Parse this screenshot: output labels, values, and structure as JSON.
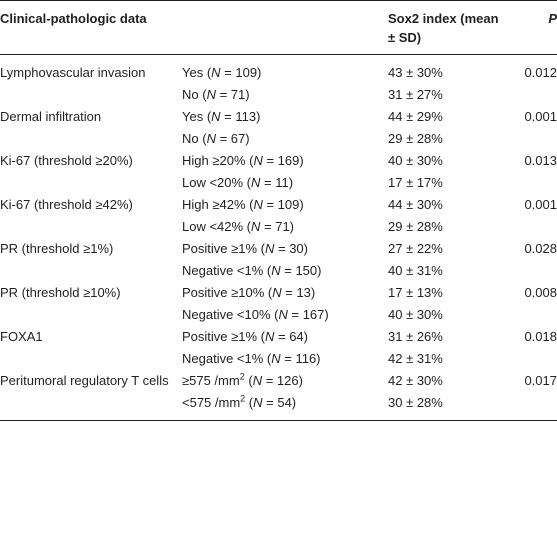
{
  "header": {
    "col1": "Clinical-pathologic data",
    "col2": "",
    "col3": "Sox2 index (mean ± SD)",
    "col4": "P"
  },
  "rows": [
    {
      "factor": "Lymphovascular invasion",
      "group_pre": "Yes (",
      "n": "N",
      "group_post": " = 109)",
      "sox2": "43 ± 30%",
      "p": "0.012"
    },
    {
      "factor": "",
      "group_pre": "No (",
      "n": "N",
      "group_post": " = 71)",
      "sox2": "31 ± 27%",
      "p": ""
    },
    {
      "factor": "Dermal infiltration",
      "group_pre": "Yes (",
      "n": "N",
      "group_post": " = 113)",
      "sox2": "44 ± 29%",
      "p": "0.001"
    },
    {
      "factor": "",
      "group_pre": "No (",
      "n": "N",
      "group_post": " = 67)",
      "sox2": "29 ± 28%",
      "p": ""
    },
    {
      "factor": "Ki-67 (threshold ≥20%)",
      "group_pre": "High ≥20% (",
      "n": "N",
      "group_post": " = 169)",
      "sox2": "40 ± 30%",
      "p": "0.013"
    },
    {
      "factor": "",
      "group_pre": "Low <20% (",
      "n": "N",
      "group_post": " = 11)",
      "sox2": "17 ± 17%",
      "p": ""
    },
    {
      "factor": "Ki-67 (threshold ≥42%)",
      "group_pre": "High ≥42% (",
      "n": "N",
      "group_post": " = 109)",
      "sox2": "44 ± 30%",
      "p": "0.001"
    },
    {
      "factor": "",
      "group_pre": "Low <42% (",
      "n": "N",
      "group_post": " = 71)",
      "sox2": "29 ± 28%",
      "p": ""
    },
    {
      "factor": "PR (threshold ≥1%)",
      "group_pre": "Positive ≥1% (",
      "n": "N",
      "group_post": " = 30)",
      "sox2": "27 ± 22%",
      "p": "0.028"
    },
    {
      "factor": "",
      "group_pre": "Negative <1% (",
      "n": "N",
      "group_post": " = 150)",
      "sox2": "40 ± 31%",
      "p": ""
    },
    {
      "factor": "PR (threshold ≥10%)",
      "group_pre": "Positive ≥10% (",
      "n": "N",
      "group_post": " = 13)",
      "sox2": "17 ± 13%",
      "p": "0.008"
    },
    {
      "factor": "",
      "group_pre": "Negative <10% (",
      "n": "N",
      "group_post": " = 167)",
      "sox2": "40 ± 30%",
      "p": ""
    },
    {
      "factor": "FOXA1",
      "group_pre": "Positive ≥1% (",
      "n": "N",
      "group_post": " = 64)",
      "sox2": "31 ± 26%",
      "p": "0.018"
    },
    {
      "factor": "",
      "group_pre": "Negative <1% (",
      "n": "N",
      "group_post": " = 116)",
      "sox2": "42 ± 31%",
      "p": ""
    },
    {
      "factor": "Peritumoral regulatory T cells",
      "group_pre": "≥575 /mm",
      "sup": "2",
      "group_mid": " (",
      "n": "N",
      "group_post": " = 126)",
      "sox2": "42 ± 30%",
      "p": "0.017"
    },
    {
      "factor": "",
      "group_pre": "<575 /mm",
      "sup": "2",
      "group_mid": " (",
      "n": "N",
      "group_post": " = 54)",
      "sox2": "30 ± 28%",
      "p": ""
    }
  ]
}
